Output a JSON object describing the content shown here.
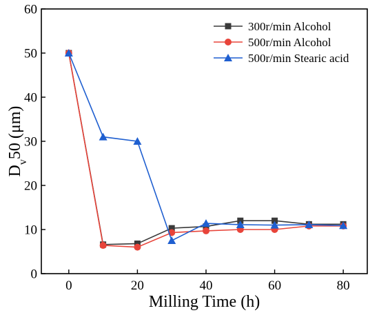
{
  "chart_data": {
    "type": "line",
    "xlabel": "Milling Time (h)",
    "ylabel": {
      "main": "D",
      "sub": "v",
      "rest": "50 (μm)"
    },
    "xlim": [
      -8,
      87
    ],
    "ylim": [
      0,
      60
    ],
    "xticks": [
      0,
      20,
      40,
      60,
      80
    ],
    "yticks": [
      0,
      10,
      20,
      30,
      40,
      50,
      60
    ],
    "x": [
      0,
      10,
      20,
      30,
      40,
      50,
      60,
      70,
      80
    ],
    "legend_position": "top-right",
    "grid": false,
    "series": [
      {
        "name": "300r/min Alcohol",
        "color": "#3a3a3a",
        "marker": "square",
        "values": [
          50,
          6.6,
          6.8,
          10.3,
          10.7,
          12.0,
          12.0,
          11.2,
          11.2
        ]
      },
      {
        "name": "500r/min Alcohol",
        "color": "#e8443a",
        "marker": "circle",
        "values": [
          50,
          6.4,
          6.0,
          9.3,
          9.7,
          10.0,
          10.0,
          10.8,
          10.8
        ]
      },
      {
        "name": "500r/min Stearic acid",
        "color": "#1f5fd0",
        "marker": "triangle",
        "values": [
          50,
          31.0,
          30.0,
          7.5,
          11.4,
          11.1,
          11.0,
          11.1,
          10.9
        ]
      }
    ]
  }
}
